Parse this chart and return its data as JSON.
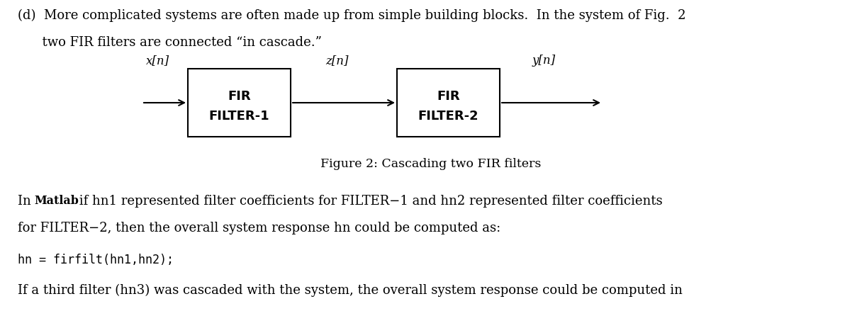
{
  "bg_color": "#ffffff",
  "fig_width": 12.16,
  "fig_height": 4.64,
  "dpi": 100,
  "box1_label_line1": "FIR",
  "box1_label_line2": "FILTER-1",
  "box2_label_line1": "FIR",
  "box2_label_line2": "FILTER-2",
  "signal_in": "x[n]",
  "signal_mid": "z[n]",
  "signal_out": "y[n]",
  "figure_caption": "Figure 2: Cascading two FIR filters",
  "text_color": "#000000",
  "box_color": "#000000",
  "line_color": "#000000",
  "font_size_body": 13.0,
  "font_size_box_label": 13.0,
  "font_size_signal": 12.0,
  "font_size_caption": 12.5,
  "font_size_code": 12.0,
  "line1_text": "(d)  More complicated systems are often made up from simple building blocks.  In the system of Fig.  2",
  "line2_text": "      two FIR filters are connected “in cascade.”",
  "matlab_line1_pre": "In ",
  "matlab_line1_sc": "Matlab",
  "matlab_line1_post": " if hn1 represented filter coefficients for FILTER−1 and hn2 represented filter coefficients",
  "matlab_line2": "for FILTER−2, then the overall system response hn could be computed as:",
  "code_line": "hn = firfilt(hn1,hn2);",
  "last_line": "If a third filter (hn3) was cascaded with the system, the overall system response could be computed in"
}
